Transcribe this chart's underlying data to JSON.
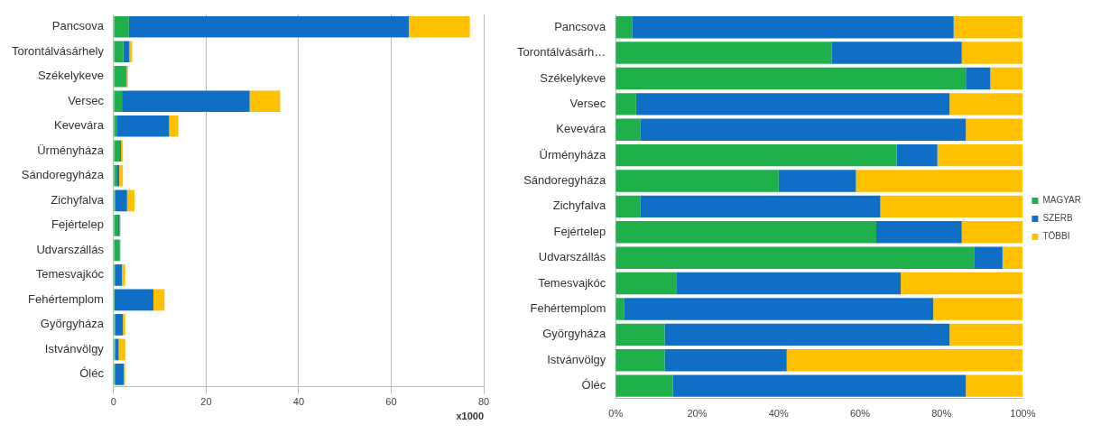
{
  "chart_data": [
    {
      "type": "bar",
      "orientation": "horizontal",
      "stacked": true,
      "xlabel": "x1000",
      "categories": [
        "Pancsova",
        "Torontálvásárhely",
        "Székelykeve",
        "Versec",
        "Kevevára",
        "Ürményháza",
        "Sándoregyháza",
        "Zichyfalva",
        "Fejértelep",
        "Udvarszállás",
        "Temesvajkóc",
        "Fehértemplom",
        "Györgyháza",
        "Istvánvölgy",
        "Óléc"
      ],
      "series": [
        {
          "color": "#1fb04c",
          "values": [
            3.3,
            2.1,
            2.6,
            1.8,
            0.8,
            1.4,
            0.8,
            0.3,
            1.0,
            1.3,
            0.4,
            0.2,
            0.3,
            0.3,
            0.4
          ]
        },
        {
          "color": "#0f6fc6",
          "values": [
            60.5,
            1.3,
            0.2,
            27.6,
            11.2,
            0.2,
            0.4,
            2.6,
            0.3,
            0.1,
            1.4,
            8.4,
            1.7,
            0.8,
            1.8
          ]
        },
        {
          "color": "#ffc000",
          "values": [
            13.2,
            0.6,
            0.3,
            6.6,
            2.0,
            0.4,
            0.8,
            1.6,
            0.2,
            0.1,
            0.7,
            2.4,
            0.5,
            1.4,
            0.3
          ]
        }
      ],
      "xlim": [
        0,
        80
      ],
      "xticks": [
        0,
        20,
        40,
        60,
        80
      ],
      "grid": "x",
      "legend": false
    },
    {
      "type": "bar",
      "orientation": "horizontal",
      "stacked": true,
      "categories": [
        "Pancsova",
        "Torontálvásárh…",
        "Székelykeve",
        "Versec",
        "Kevevára",
        "Ürményháza",
        "Sándoregyháza",
        "Zichyfalva",
        "Fejértelep",
        "Udvarszállás",
        "Temesvajkóc",
        "Fehértemplom",
        "Györgyháza",
        "Istvánvölgy",
        "Óléc"
      ],
      "series": [
        {
          "name": "MAGYAR",
          "color": "#1fb04c",
          "values": [
            4,
            53,
            86,
            5,
            6,
            69,
            40,
            6,
            64,
            88,
            15,
            2,
            12,
            12,
            14
          ]
        },
        {
          "name": "SZERB",
          "color": "#0f6fc6",
          "values": [
            79,
            32,
            6,
            77,
            80,
            10,
            19,
            59,
            21,
            7,
            55,
            76,
            70,
            30,
            72
          ]
        },
        {
          "name": "TÖBBI",
          "color": "#ffc000",
          "values": [
            17,
            15,
            8,
            18,
            14,
            21,
            41,
            35,
            15,
            5,
            30,
            22,
            18,
            58,
            14
          ]
        }
      ],
      "xlim": [
        0,
        100
      ],
      "xticks": [
        {
          "value": 0,
          "label": "0%"
        },
        {
          "value": 20,
          "label": "20%"
        },
        {
          "value": 40,
          "label": "40%"
        },
        {
          "value": 60,
          "label": "60%"
        },
        {
          "value": 80,
          "label": "80%"
        },
        {
          "value": 100,
          "label": "100%"
        }
      ],
      "grid": false,
      "legend": "right"
    }
  ]
}
